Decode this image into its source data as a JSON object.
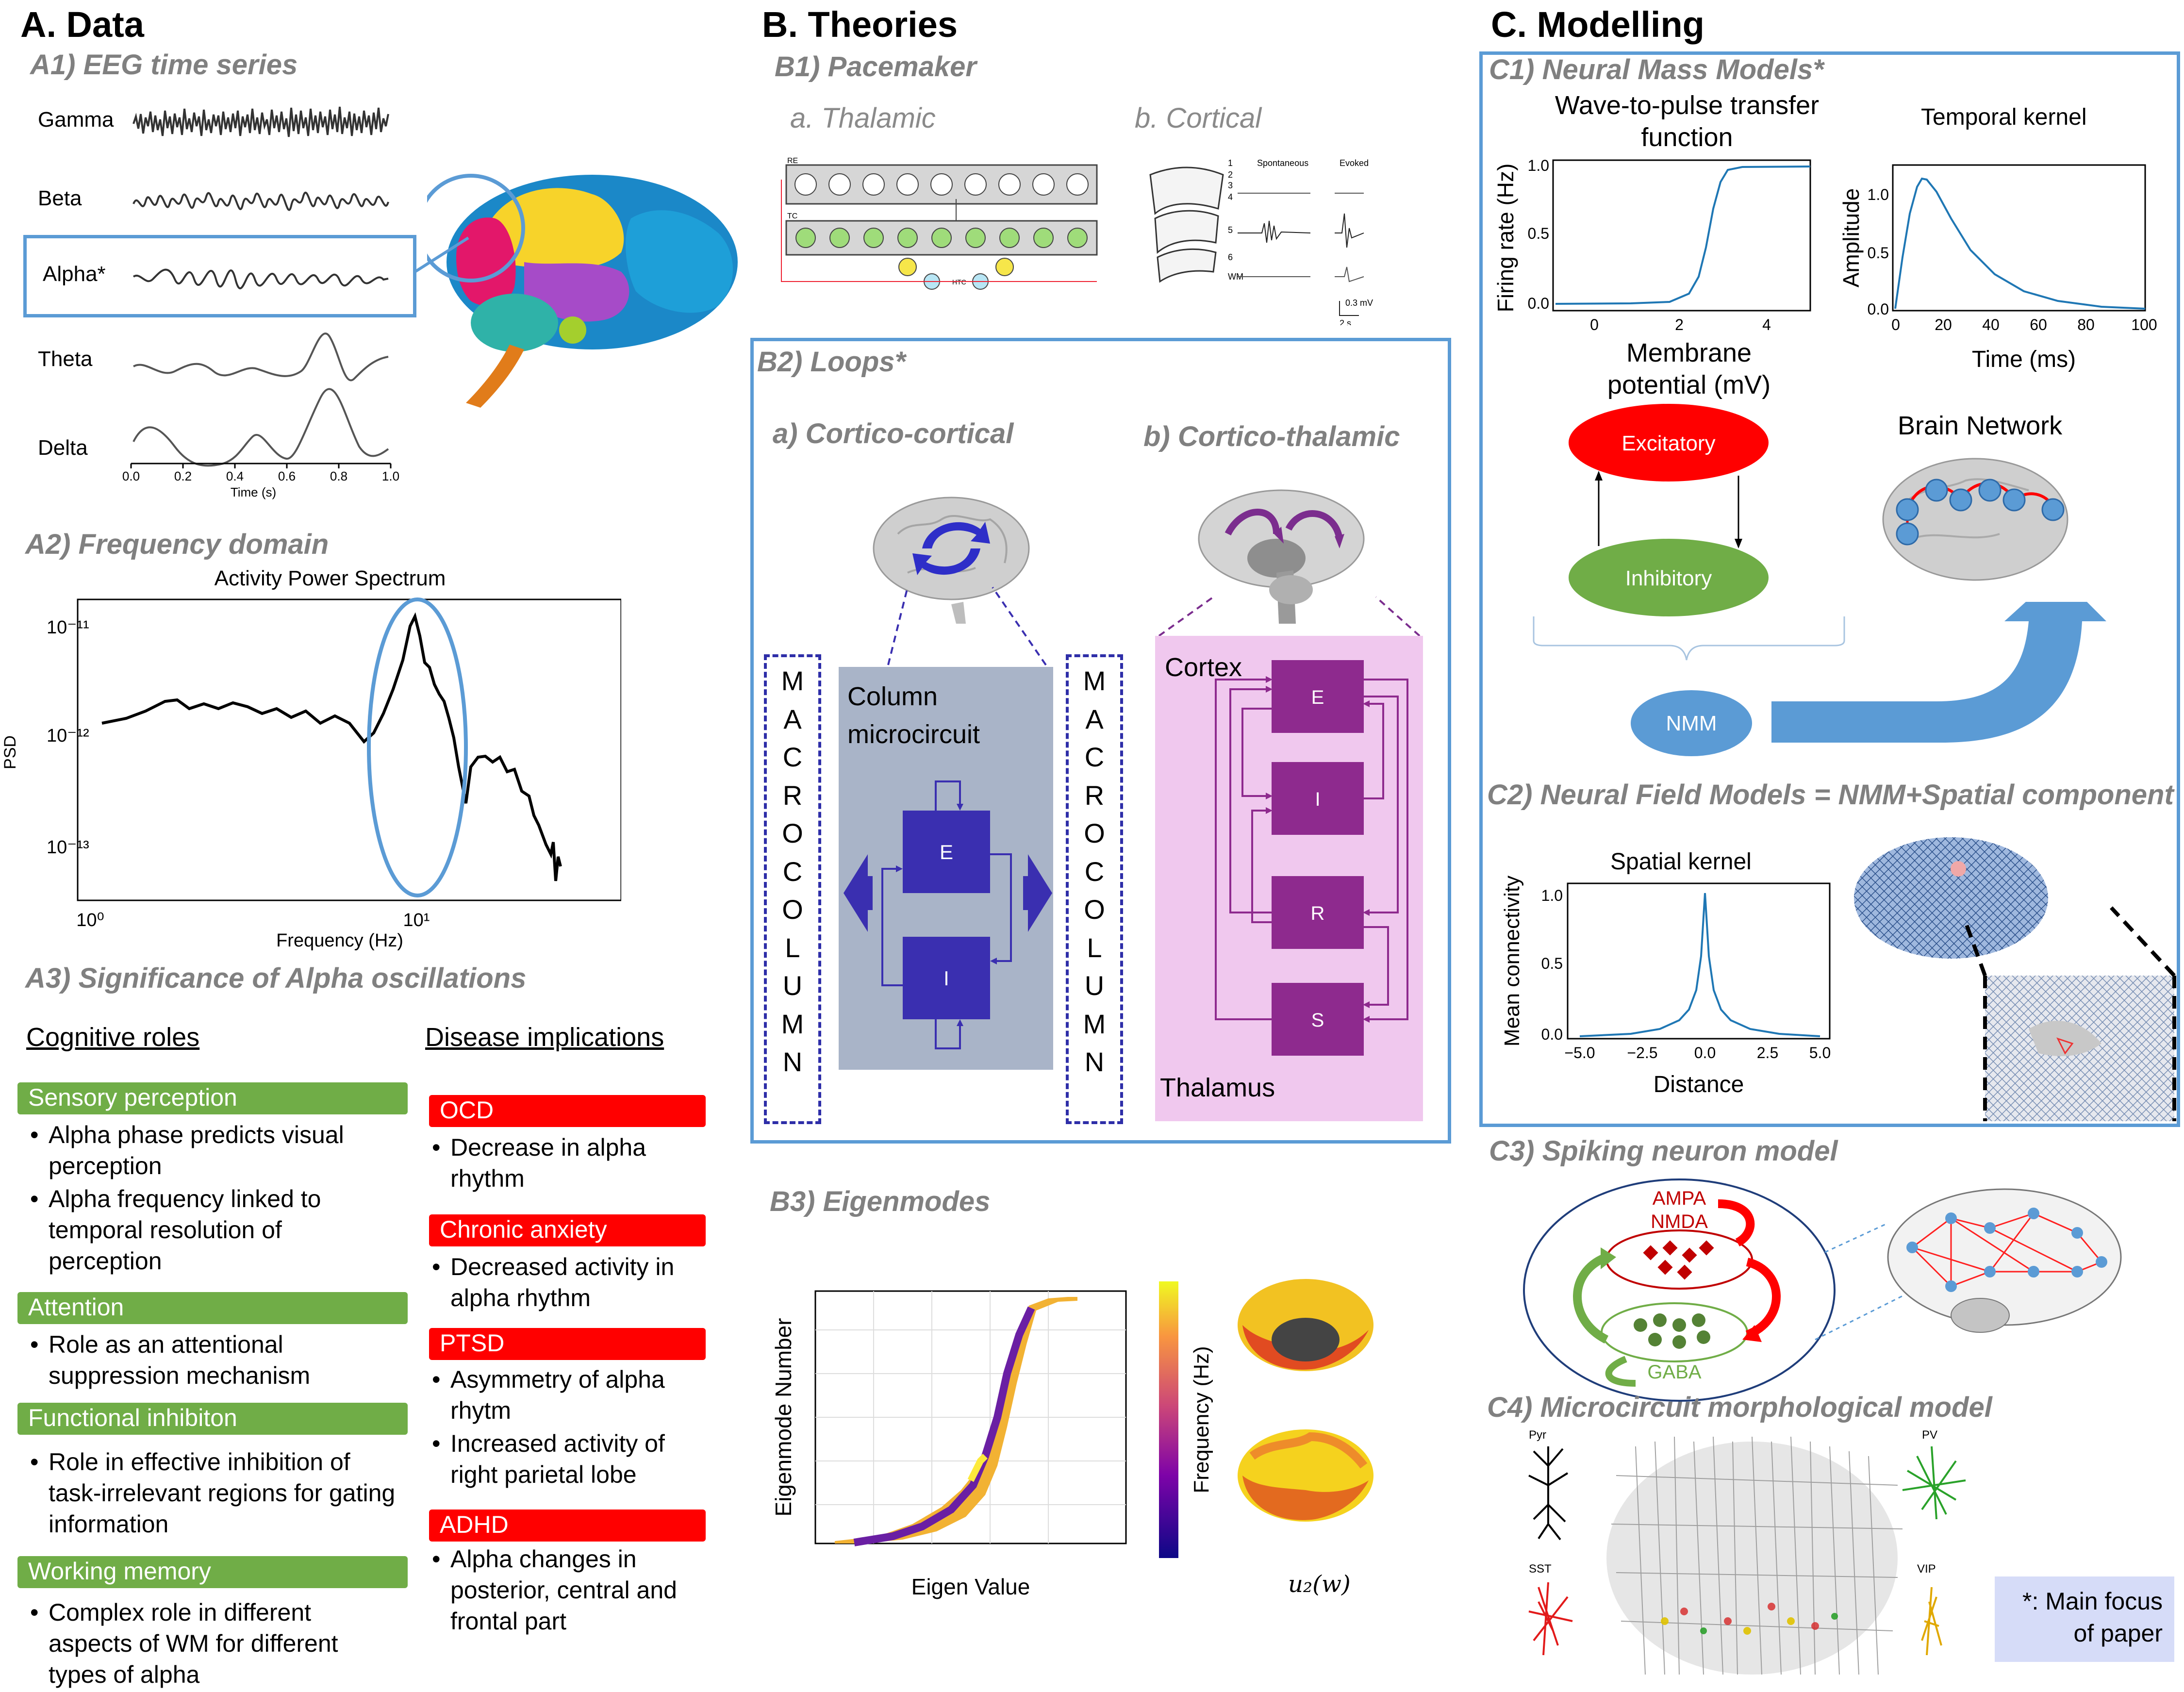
{
  "sectionA": {
    "title": "A. Data",
    "a1": {
      "title": "A1) EEG time series",
      "bands": [
        "Gamma",
        "Beta",
        "Alpha*",
        "Theta",
        "Delta"
      ],
      "time_ticks": [
        "0.0",
        "0.2",
        "0.4",
        "0.6",
        "0.8",
        "1.0"
      ],
      "xlabel": "Time (s)"
    },
    "a2": {
      "title": "A2) Frequency domain",
      "chart_title": "Activity Power Spectrum",
      "xlabel": "Frequency (Hz)",
      "ylabel": "PSD"
    },
    "a3": {
      "title": "A3) Significance of Alpha oscillations",
      "cognitive_header": "Cognitive roles",
      "disease_header": "Disease implications",
      "cognitive": [
        {
          "tag": "Sensory perception",
          "bullets": [
            "Alpha phase predicts visual perception",
            "Alpha frequency linked to temporal resolution of perception"
          ]
        },
        {
          "tag": "Attention",
          "bullets": [
            "Role as an attentional suppression mechanism"
          ]
        },
        {
          "tag": "Functional inhibiton",
          "bullets": [
            "Role in effective inhibition of task-irrelevant regions for gating information"
          ]
        },
        {
          "tag": "Working memory",
          "bullets": [
            "Complex role in different aspects of WM for different types of alpha"
          ]
        }
      ],
      "disease": [
        {
          "tag": "OCD",
          "bullets": [
            "Decrease in alpha rhythm"
          ]
        },
        {
          "tag": "Chronic anxiety",
          "bullets": [
            "Decreased activity in alpha rhythm"
          ]
        },
        {
          "tag": "PTSD",
          "bullets": [
            "Asymmetry of alpha rhytm",
            "Increased activity of right parietal lobe"
          ]
        },
        {
          "tag": "ADHD",
          "bullets": [
            "Alpha changes in posterior, central and frontal part"
          ]
        }
      ]
    }
  },
  "sectionB": {
    "title": "B. Theories",
    "b1": {
      "title": "B1) Pacemaker",
      "thalamic": "a. Thalamic",
      "cortical": "b. Cortical",
      "cortical_labels": {
        "spontaneous": "Spontaneous",
        "evoked": "Evoked",
        "wm": "WM",
        "scale_v": "0.3 mV",
        "scale_t": "2 s",
        "layers": [
          "1",
          "2",
          "3",
          "4",
          "5",
          "6"
        ]
      },
      "thalamic_labels": {
        "re": "RE",
        "tc": "TC",
        "htc": "HTC"
      }
    },
    "b2": {
      "title": "B2) Loops*",
      "cc": "a) Cortico-cortical",
      "ct": "b) Cortico-thalamic",
      "macrocolumn": [
        "M",
        "A",
        "C",
        "R",
        "O",
        "C",
        "O",
        "L",
        "U",
        "M",
        "N"
      ],
      "column_title": "Column microcircuit",
      "e": "E",
      "i": "I",
      "cortex": "Cortex",
      "thalamus": "Thalamus",
      "r": "R",
      "s": "S"
    },
    "b3": {
      "title": "B3) Eigenmodes",
      "xlabel": "Eigen Value",
      "ylabel": "Eigenmode Number",
      "colorbar_label": "Frequency (Hz)",
      "u2_label": "u₂(w)"
    }
  },
  "sectionC": {
    "title": "C. Modelling",
    "c1": {
      "title": "C1) Neural Mass Models*",
      "wave_title": "Wave-to-pulse transfer function",
      "wave_ylabel": "Firing rate (Hz)",
      "wave_xlabel": "Membrane potential (mV)",
      "wave_xticks": [
        "0",
        "2",
        "4"
      ],
      "wave_yticks": [
        "0.0",
        "0.5",
        "1.0"
      ],
      "kernel_title": "Temporal kernel",
      "kernel_ylabel": "Amplitude",
      "kernel_xlabel": "Time (ms)",
      "kernel_xticks": [
        "0",
        "20",
        "40",
        "60",
        "80",
        "100"
      ],
      "kernel_yticks": [
        "0.0",
        "0.5",
        "1.0"
      ],
      "excitatory": "Excitatory",
      "inhibitory": "Inhibitory",
      "nmm": "NMM",
      "brain_network": "Brain Network"
    },
    "c2": {
      "title": "C2) Neural Field Models = NMM+Spatial component",
      "kernel_title": "Spatial kernel",
      "ylabel": "Mean connectivity",
      "xlabel": "Distance",
      "xticks": [
        "−5.0",
        "−2.5",
        "0.0",
        "2.5",
        "5.0"
      ],
      "yticks": [
        "0.0",
        "0.5",
        "1.0"
      ]
    },
    "c3": {
      "title": "C3) Spiking neuron model",
      "ampa": "AMPA",
      "nmda": "NMDA",
      "gaba": "GABA"
    },
    "c4": {
      "title": "C4) Microcircuit morphological model",
      "cells": [
        "Pyr",
        "PV",
        "SST",
        "VIP"
      ]
    },
    "note": "*: Main focus of paper"
  },
  "colors": {
    "blue_box": "#5b9bd5",
    "green_tag": "#70ad47",
    "red_tag": "#ff0000",
    "purple": "#7b2d8e",
    "indigo": "#3a2fb0",
    "pink_bg": "#f0c8ee",
    "gray_bg": "#a9b4c8",
    "note_bg": "#d6dcf8"
  }
}
